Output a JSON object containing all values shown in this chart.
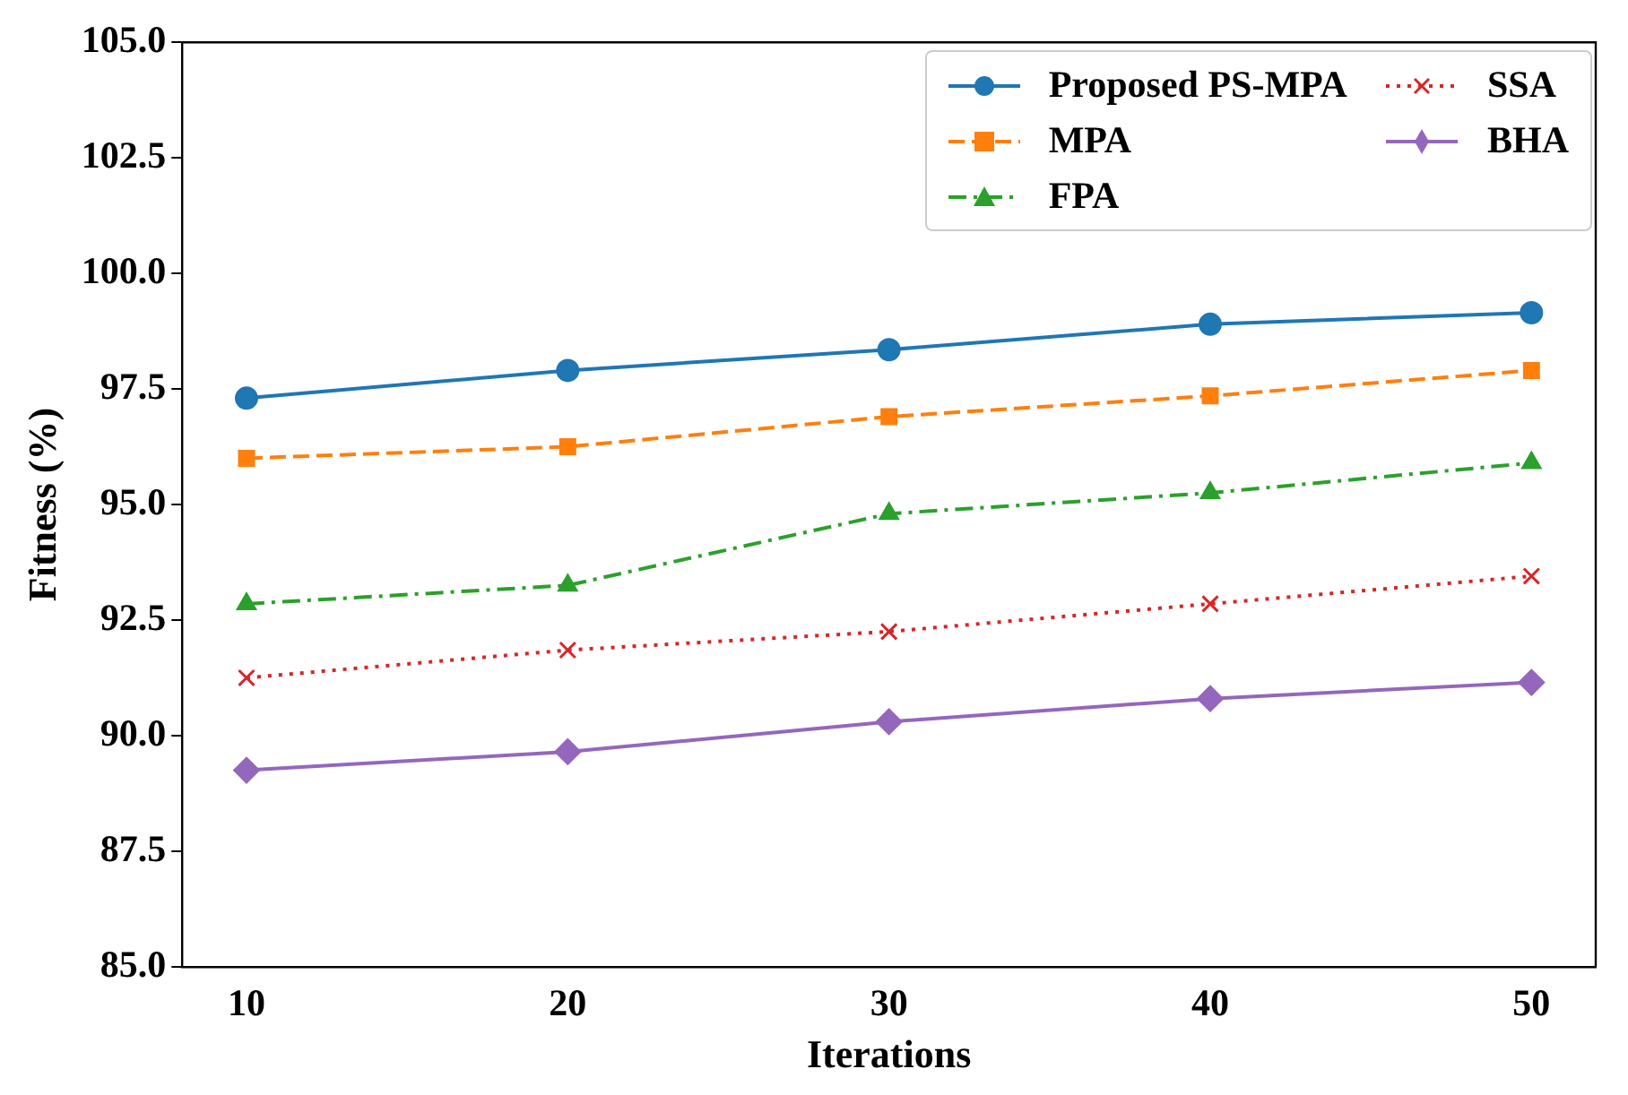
{
  "chart_data": {
    "type": "line",
    "xlabel": "Iterations",
    "ylabel": "Fitness (%)",
    "x": [
      10,
      20,
      30,
      40,
      50
    ],
    "xlim": [
      8,
      52
    ],
    "xticks": [
      10,
      20,
      30,
      40,
      50
    ],
    "ylim": [
      85,
      105
    ],
    "yticks": [
      {
        "value": 85,
        "label": "85.0"
      },
      {
        "value": 87.5,
        "label": "87.5"
      },
      {
        "value": 90,
        "label": "90.0"
      },
      {
        "value": 92.5,
        "label": "92.5"
      },
      {
        "value": 95,
        "label": "95.0"
      },
      {
        "value": 97.5,
        "label": "97.5"
      },
      {
        "value": 100,
        "label": "100.0"
      },
      {
        "value": 102.5,
        "label": "102.5"
      },
      {
        "value": 105,
        "label": "105.0"
      }
    ],
    "grid": false,
    "legend": "top right",
    "series": [
      {
        "name": "Proposed PS-MPA",
        "color": "#1f77b4",
        "marker": "circle",
        "line_style": "solid",
        "values": [
          97.3,
          97.9,
          98.35,
          98.9,
          99.15
        ]
      },
      {
        "name": "MPA",
        "color": "#ff7f0e",
        "marker": "square",
        "line_style": "dashed",
        "values": [
          96.0,
          96.25,
          96.9,
          97.35,
          97.9
        ]
      },
      {
        "name": "FPA",
        "color": "#2ca02c",
        "marker": "triangle",
        "line_style": "dashdot",
        "values": [
          92.85,
          93.25,
          94.8,
          95.25,
          95.9
        ]
      },
      {
        "name": "SSA",
        "color": "#d62728",
        "marker": "cross",
        "line_style": "dotted",
        "values": [
          91.25,
          91.85,
          92.25,
          92.85,
          93.45
        ]
      },
      {
        "name": "BHA",
        "color": "#9467bd",
        "marker": "diamond",
        "line_style": "solid",
        "values": [
          89.25,
          89.65,
          90.3,
          90.8,
          91.15
        ]
      }
    ]
  }
}
